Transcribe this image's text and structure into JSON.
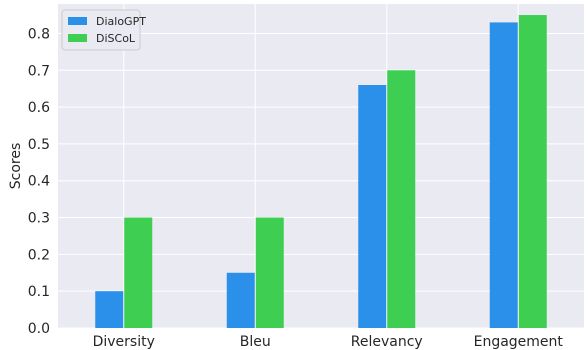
{
  "chart_data": {
    "type": "bar",
    "title": "",
    "xlabel": "",
    "ylabel": "Scores",
    "categories": [
      "Diversity",
      "Bleu",
      "Relevancy",
      "Engagement"
    ],
    "series": [
      {
        "name": "DialoGPT",
        "color": "#2b90ea",
        "values": [
          0.1,
          0.15,
          0.66,
          0.83
        ]
      },
      {
        "name": "DiSCoL",
        "color": "#3ece52",
        "values": [
          0.3,
          0.3,
          0.7,
          0.85
        ]
      }
    ],
    "ylim": [
      0,
      0.88
    ],
    "yticks": [
      "0.0",
      "0.1",
      "0.2",
      "0.3",
      "0.4",
      "0.5",
      "0.6",
      "0.7",
      "0.8"
    ],
    "grid": true,
    "legend_position": "top-left",
    "background_color": "#eaeaf2"
  }
}
